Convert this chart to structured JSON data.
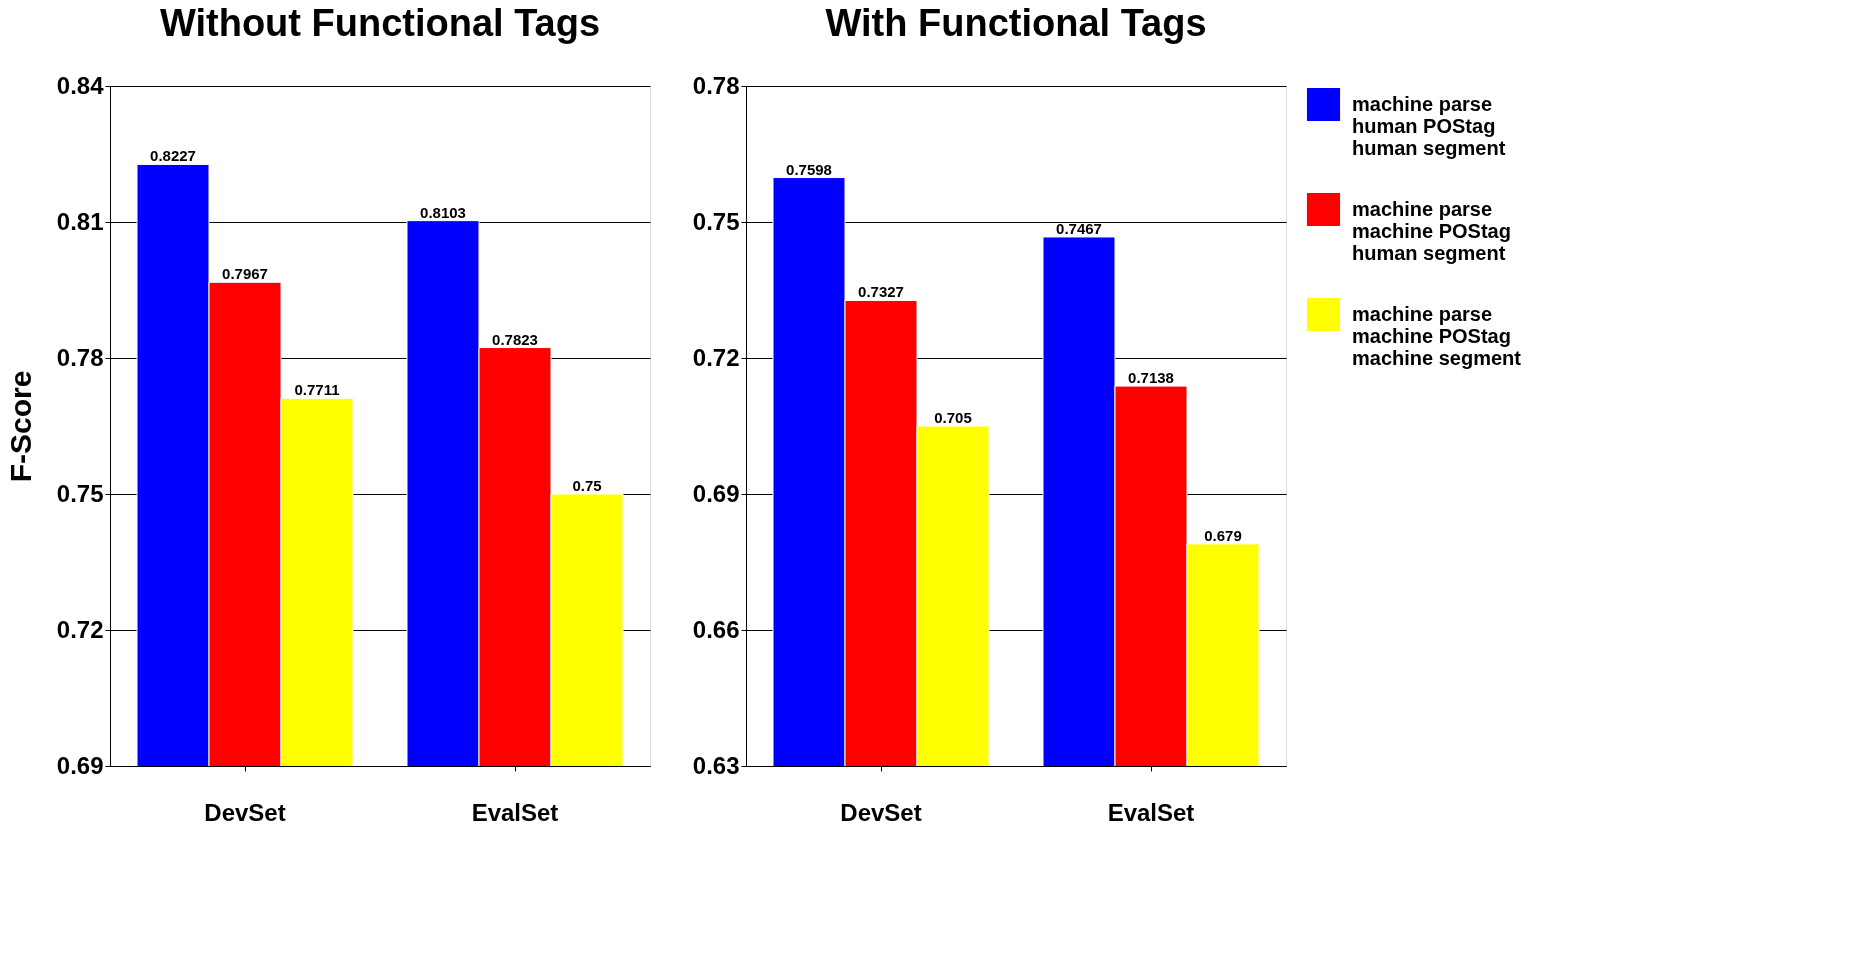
{
  "chart_data": [
    {
      "type": "bar",
      "title": "Without Functional Tags",
      "ylabel": "F-Score",
      "categories": [
        "DevSet",
        "EvalSet"
      ],
      "series": [
        {
          "name": "machine parse\nhuman POStag\nhuman segment",
          "color": "#0000ff",
          "values": [
            0.8227,
            0.8103
          ]
        },
        {
          "name": "machine parse\nmachine POStag\nhuman segment",
          "color": "#ff0000",
          "values": [
            0.7967,
            0.7823
          ]
        },
        {
          "name": "machine parse\nmachine POStag\nmachine segment",
          "color": "#ffff00",
          "values": [
            0.7711,
            0.75
          ]
        }
      ],
      "ylim": [
        0.69,
        0.84
      ],
      "yticks": [
        0.69,
        0.72,
        0.75,
        0.78,
        0.81,
        0.84
      ],
      "grid": "y",
      "data_labels": true,
      "legend": "right"
    },
    {
      "type": "bar",
      "title": "With Functional Tags",
      "categories": [
        "DevSet",
        "EvalSet"
      ],
      "series": [
        {
          "name": "machine parse\nhuman POStag\nhuman segment",
          "color": "#0000ff",
          "values": [
            0.7598,
            0.7467
          ]
        },
        {
          "name": "machine parse\nmachine POStag\nhuman segment",
          "color": "#ff0000",
          "values": [
            0.7327,
            0.7138
          ]
        },
        {
          "name": "machine parse\nmachine POStag\nmachine segment",
          "color": "#ffff00",
          "values": [
            0.705,
            0.679
          ]
        }
      ],
      "ylim": [
        0.63,
        0.78
      ],
      "yticks": [
        0.63,
        0.66,
        0.69,
        0.72,
        0.75,
        0.78
      ],
      "grid": "y",
      "data_labels": true,
      "legend": "right"
    }
  ]
}
